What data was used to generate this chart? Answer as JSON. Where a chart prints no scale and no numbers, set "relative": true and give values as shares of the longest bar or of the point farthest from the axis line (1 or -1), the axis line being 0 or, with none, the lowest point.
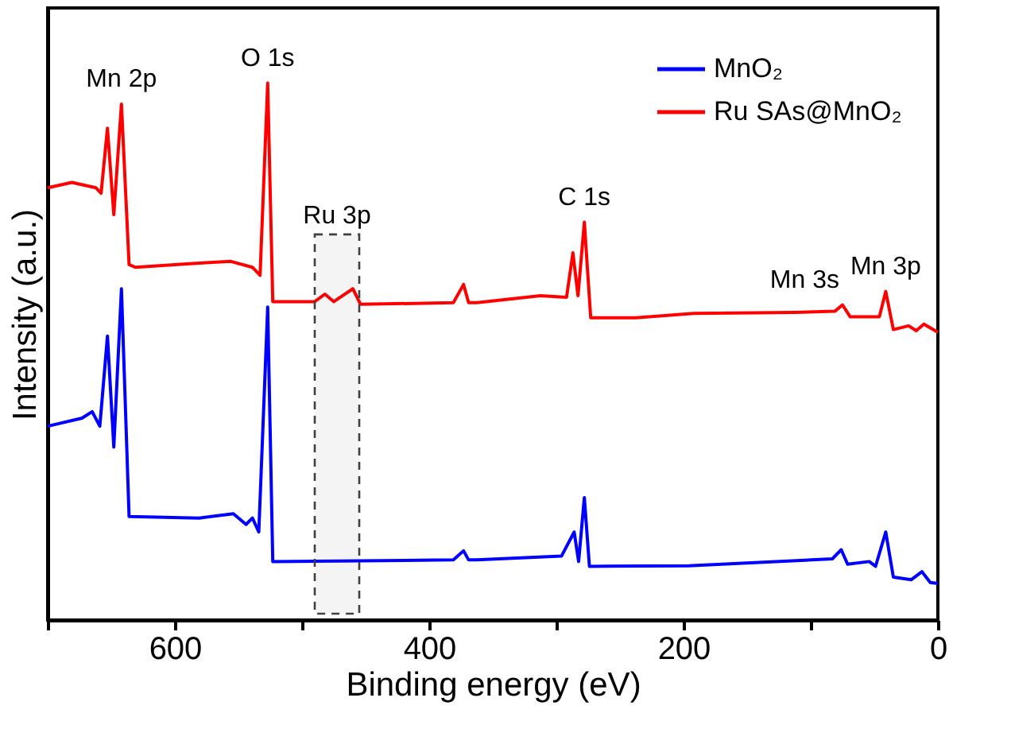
{
  "chart_data": {
    "type": "line",
    "relative": true,
    "xlabel": "Binding energy (eV)",
    "ylabel": "Intensity (a.u.)",
    "xlim": [
      700,
      0
    ],
    "xticks": [
      {
        "value": 700,
        "label": null
      },
      600,
      {
        "value": 500,
        "label": null
      },
      400,
      {
        "value": 300,
        "label": null
      },
      200,
      {
        "value": 100,
        "label": null
      },
      0
    ],
    "tick_labels": "x",
    "grid": false,
    "legend": "top right",
    "line_style": "solid",
    "marker": "none",
    "series": [
      {
        "name": "MnO₂",
        "color": "#0000ff",
        "x": [
          700,
          673,
          665,
          659,
          653,
          648,
          642,
          636,
          581,
          554,
          544,
          539,
          534,
          527,
          523,
          381,
          373,
          369,
          362.5,
          296,
          286,
          282.5,
          278,
          274,
          196,
          83,
          76,
          71,
          54,
          49,
          41,
          35,
          21,
          12.5,
          6,
          0
        ],
        "values": [
          0.361,
          0.376,
          0.388,
          0.361,
          0.529,
          0.322,
          0.617,
          0.193,
          0.19,
          0.198,
          0.178,
          0.19,
          0.164,
          0.583,
          0.109,
          0.112,
          0.129,
          0.112,
          0.112,
          0.119,
          0.164,
          0.109,
          0.228,
          0.1,
          0.101,
          0.114,
          0.131,
          0.104,
          0.109,
          0.1,
          0.164,
          0.08,
          0.075,
          0.09,
          0.07,
          0.068
        ]
      },
      {
        "name": "Ru SAs@MnO₂",
        "color": "#ff0000",
        "x": [
          700,
          681,
          662,
          658,
          653,
          648,
          642,
          636,
          631,
          586,
          556,
          539,
          533,
          527,
          523,
          490,
          482,
          475,
          460,
          454,
          381,
          373,
          369,
          362.5,
          312.5,
          292,
          287,
          283,
          278,
          273,
          237.5,
          192,
          112.5,
          81,
          75,
          69,
          46,
          41,
          35,
          23,
          17,
          11,
          0
        ],
        "values": [
          0.805,
          0.815,
          0.805,
          0.795,
          0.916,
          0.755,
          0.961,
          0.662,
          0.657,
          0.664,
          0.668,
          0.657,
          0.642,
          1,
          0.593,
          0.593,
          0.607,
          0.593,
          0.617,
          0.588,
          0.591,
          0.625,
          0.591,
          0.591,
          0.604,
          0.601,
          0.684,
          0.604,
          0.741,
          0.563,
          0.563,
          0.571,
          0.573,
          0.575,
          0.587,
          0.565,
          0.565,
          0.612,
          0.541,
          0.548,
          0.539,
          0.551,
          0.536
        ]
      }
    ],
    "annotations": [
      {
        "text": "Mn 2p",
        "x": 642,
        "y": 0.961
      },
      {
        "text": "O 1s",
        "x": 527,
        "y": 1
      },
      {
        "text": "C 1s",
        "x": 278,
        "y": 0.741
      },
      {
        "text": "Mn 3s",
        "x": 75,
        "y": 0.587
      },
      {
        "text": "Mn 3p",
        "x": 41,
        "y": 0.612
      }
    ],
    "bands": [
      {
        "axis": "x",
        "from": 490,
        "to": 455,
        "label": "Ru 3p",
        "color": "#404040"
      }
    ]
  }
}
